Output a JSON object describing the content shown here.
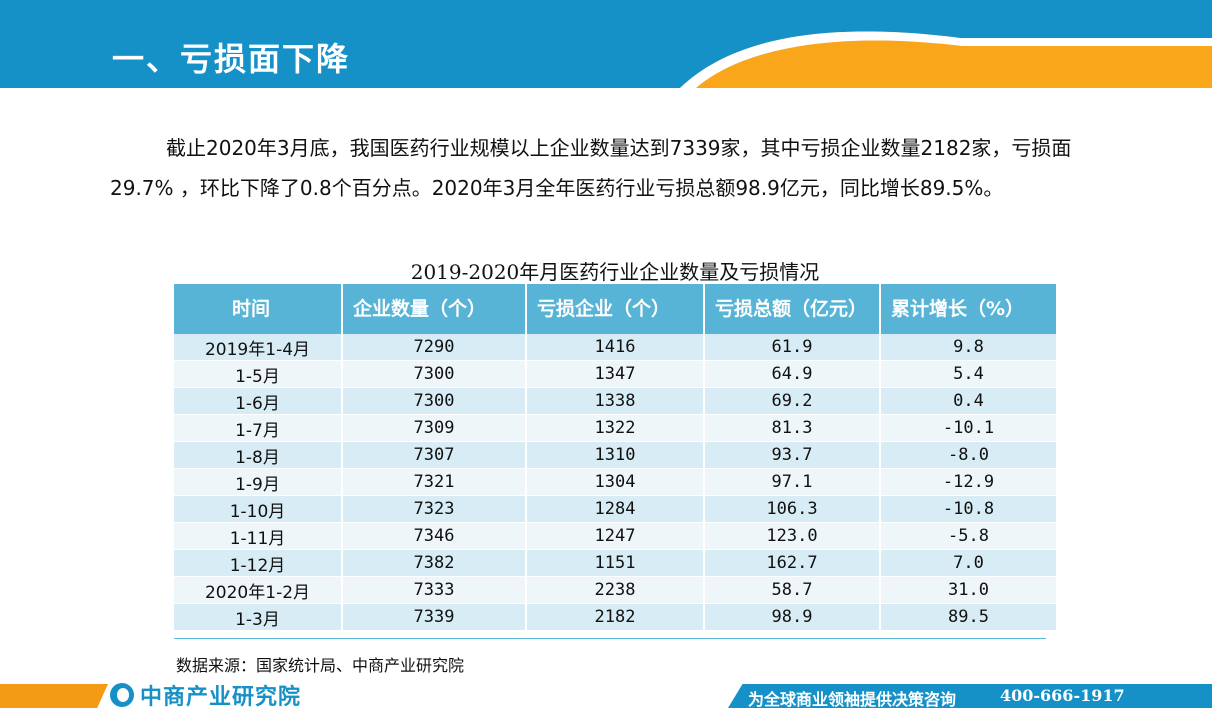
{
  "header": {
    "title": "一、亏损面下降",
    "bar_color": "#1591c8",
    "accent_color": "#f9a61a"
  },
  "intro": {
    "text": "截止2020年3月底，我国医药行业规模以上企业数量达到7339家，其中亏损企业数量2182家，亏损面29.7% ，环比下降了0.8个百分点。2020年3月全年医药行业亏损总额98.9亿元，同比增长89.5%。"
  },
  "table": {
    "title": "2019-2020年月医药行业企业数量及亏损情况",
    "columns": [
      "时间",
      "企业数量（个）",
      "亏损企业（个）",
      "亏损总额（亿元）",
      "累计增长（%）"
    ],
    "rows": [
      [
        "2019年1-4月",
        "7290",
        "1416",
        "61.9",
        "9.8"
      ],
      [
        "1-5月",
        "7300",
        "1347",
        "64.9",
        "5.4"
      ],
      [
        "1-6月",
        "7300",
        "1338",
        "69.2",
        "0.4"
      ],
      [
        "1-7月",
        "7309",
        "1322",
        "81.3",
        "-10.1"
      ],
      [
        "1-8月",
        "7307",
        "1310",
        "93.7",
        "-8.0"
      ],
      [
        "1-9月",
        "7321",
        "1304",
        "97.1",
        "-12.9"
      ],
      [
        "1-10月",
        "7323",
        "1284",
        "106.3",
        "-10.8"
      ],
      [
        "1-11月",
        "7346",
        "1247",
        "123.0",
        "-5.8"
      ],
      [
        "1-12月",
        "7382",
        "1151",
        "162.7",
        "7.0"
      ],
      [
        "2020年1-2月",
        "7333",
        "2238",
        "58.7",
        "31.0"
      ],
      [
        "1-3月",
        "7339",
        "2182",
        "98.9",
        "89.5"
      ]
    ],
    "header_color": "#58b4d6"
  },
  "source": "数据来源：国家统计局、中商产业研究院",
  "footer": {
    "logo": "中商产业研究院",
    "slogan": "为全球商业领袖提供决策咨询",
    "phone": "400-666-1917"
  }
}
